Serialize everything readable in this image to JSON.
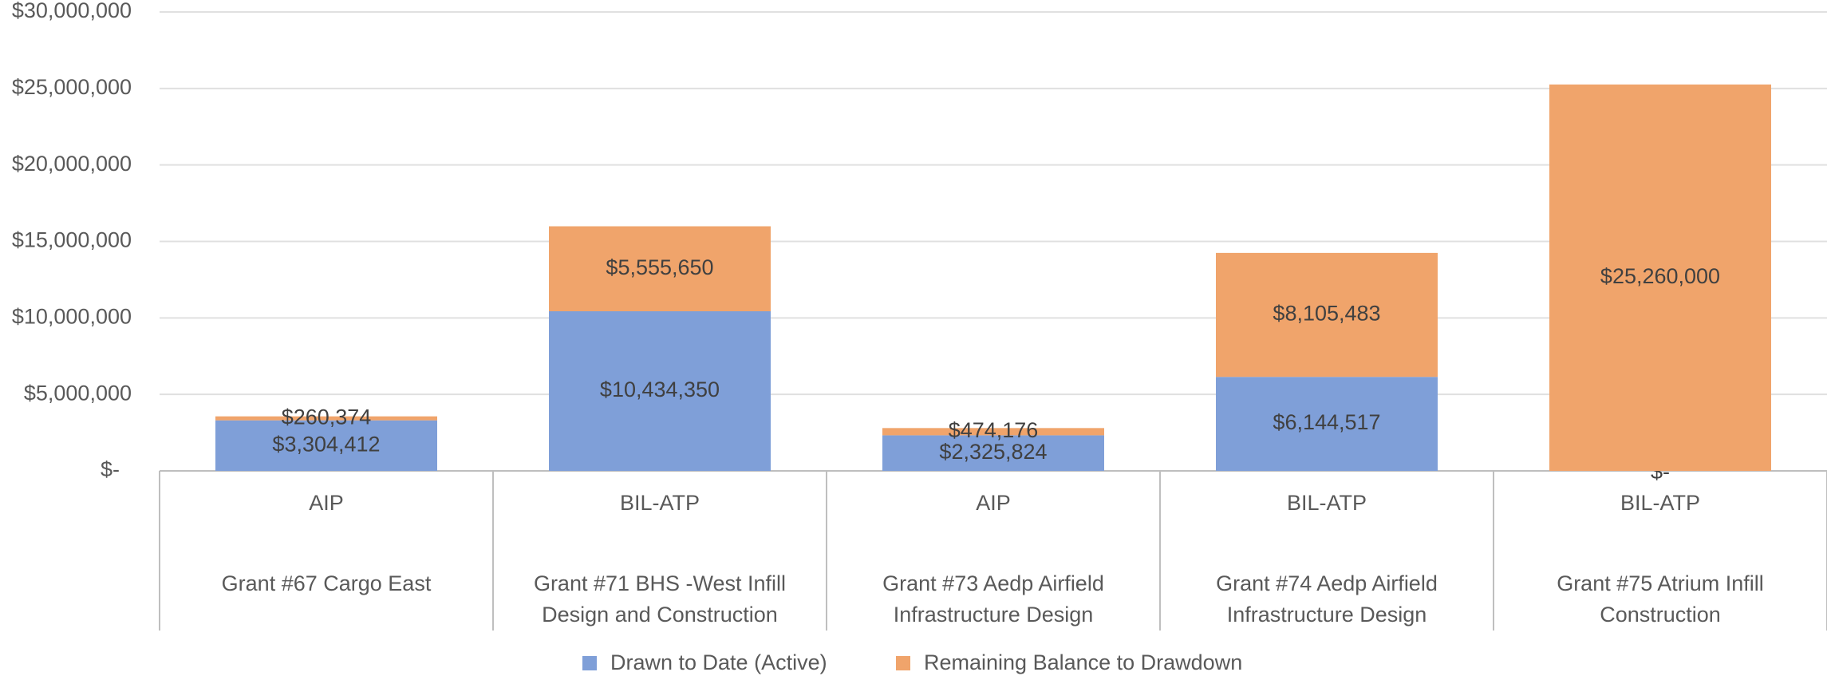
{
  "chart_data": {
    "type": "bar",
    "stacked": true,
    "categories": [
      "Grant #67 Cargo East",
      "Grant #71 BHS -West Infill Design and Construction",
      "Grant #73 Aedp Airfield Infrastructure Design",
      "Grant #74 Aedp Airfield Infrastructure Design",
      "Grant #75 Atrium Infill Construction"
    ],
    "category_groups": [
      "AIP",
      "BIL-ATP",
      "AIP",
      "BIL-ATP",
      "BIL-ATP"
    ],
    "series": [
      {
        "name": "Drawn to Date (Active)",
        "color": "#7f9fd8",
        "values": [
          3304412,
          10434350,
          2325824,
          6144517,
          0
        ],
        "value_labels": [
          "$3,304,412",
          "$10,434,350",
          "$2,325,824",
          "$6,144,517",
          "$-"
        ]
      },
      {
        "name": "Remaining Balance to Drawdown",
        "color": "#f0a46b",
        "values": [
          260374,
          5555650,
          474176,
          8105483,
          25260000
        ],
        "value_labels": [
          "$260,374",
          "$5,555,650",
          "$474,176",
          "$8,105,483",
          "$25,260,000"
        ]
      }
    ],
    "ylim": [
      0,
      30000000
    ],
    "yticks": [
      {
        "value": 0,
        "label": "$-"
      },
      {
        "value": 5000000,
        "label": "$5,000,000"
      },
      {
        "value": 10000000,
        "label": "$10,000,000"
      },
      {
        "value": 15000000,
        "label": "$15,000,000"
      },
      {
        "value": 20000000,
        "label": "$20,000,000"
      },
      {
        "value": 25000000,
        "label": "$25,000,000"
      },
      {
        "value": 30000000,
        "label": "$30,000,000"
      }
    ],
    "grid": true,
    "legend": "bottom"
  }
}
